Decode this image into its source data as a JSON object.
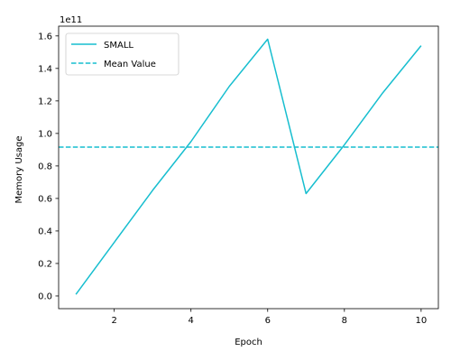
{
  "chart_data": {
    "type": "line",
    "title": "",
    "xlabel": "Epoch",
    "ylabel": "Memory Usage",
    "offset_text": "1e11",
    "x": [
      1,
      2,
      3,
      4,
      5,
      6,
      7,
      8,
      9,
      10
    ],
    "xlim": [
      0.55,
      10.45
    ],
    "ylim": [
      -0.078,
      1.66
    ],
    "x_ticks": [
      2,
      4,
      6,
      8,
      10
    ],
    "x_tick_labels": [
      "2",
      "4",
      "6",
      "8",
      "10"
    ],
    "y_ticks": [
      0,
      0.2,
      0.4,
      0.6,
      0.8,
      1.0,
      1.2,
      1.4,
      1.6
    ],
    "y_tick_labels": [
      "0.0",
      "0.2",
      "0.4",
      "0.6",
      "0.8",
      "1.0",
      "1.2",
      "1.4",
      "1.6"
    ],
    "grid": false,
    "legend_position": "top-left",
    "series": [
      {
        "name": "SMALL",
        "style": "solid",
        "color": "#17becf",
        "values": [
          0.01,
          0.33,
          0.65,
          0.95,
          1.29,
          1.58,
          0.63,
          0.93,
          1.25,
          1.54
        ]
      }
    ],
    "reference_lines": [
      {
        "name": "Mean Value",
        "style": "dashed",
        "color": "#17becf",
        "y": 0.916
      }
    ]
  }
}
